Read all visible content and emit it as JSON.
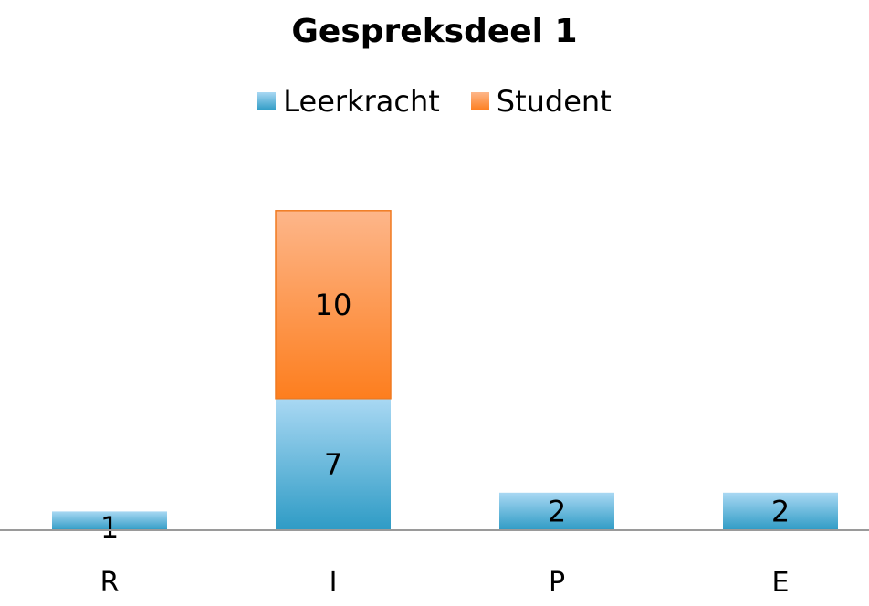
{
  "chart_data": {
    "type": "bar",
    "stacked": true,
    "title": "Gespreksdeel 1",
    "categories": [
      "R",
      "I",
      "P",
      "E"
    ],
    "series": [
      {
        "name": "Leerkracht",
        "values": [
          1,
          7,
          2,
          2
        ],
        "color_top": "#a9d8f3",
        "color_bottom": "#2e9bc5"
      },
      {
        "name": "Student",
        "values": [
          0,
          10,
          0,
          0
        ],
        "color_top": "#fdb68a",
        "color_bottom": "#fd7e1e"
      }
    ],
    "legend_position": "top",
    "grid": false,
    "ylim": [
      0,
      17
    ]
  }
}
